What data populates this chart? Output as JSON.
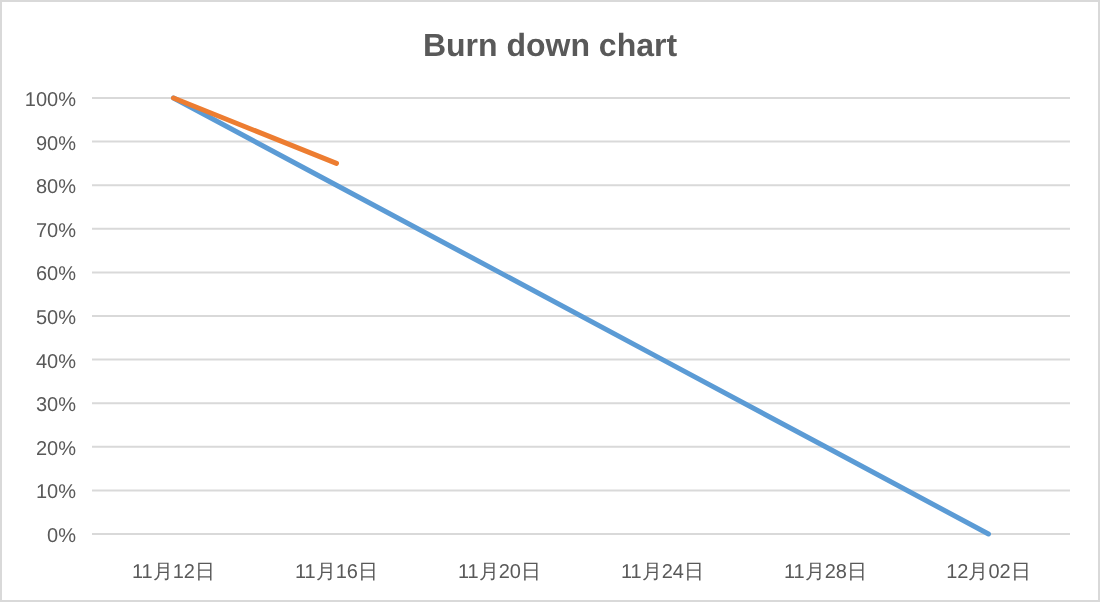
{
  "chart_data": {
    "type": "line",
    "title": "Burn down chart",
    "series": [
      {
        "color": "#5b9bd5",
        "x": [
          "--11-12",
          "--11-16",
          "--11-20",
          "--11-24",
          "--11-28",
          "--12-02"
        ],
        "values": [
          100,
          80,
          60,
          40,
          20,
          0
        ]
      },
      {
        "color": "#ed7d31",
        "x": [
          "--11-12",
          "--11-16"
        ],
        "values": [
          100,
          85
        ]
      }
    ],
    "xlim": [
      "--11-10",
      "--12-04"
    ],
    "xticks": [
      {
        "value": "--11-12",
        "label": "11月12日"
      },
      {
        "value": "--11-16",
        "label": "11月16日"
      },
      {
        "value": "--11-20",
        "label": "11月20日"
      },
      {
        "value": "--11-24",
        "label": "11月24日"
      },
      {
        "value": "--11-28",
        "label": "11月28日"
      },
      {
        "value": "--12-02",
        "label": "12月02日"
      }
    ],
    "ylim": [
      0,
      100
    ],
    "yticks": [
      {
        "value": 0,
        "label": "0%"
      },
      {
        "value": 10,
        "label": "10%"
      },
      {
        "value": 20,
        "label": "20%"
      },
      {
        "value": 30,
        "label": "30%"
      },
      {
        "value": 40,
        "label": "40%"
      },
      {
        "value": 50,
        "label": "50%"
      },
      {
        "value": 60,
        "label": "60%"
      },
      {
        "value": 70,
        "label": "70%"
      },
      {
        "value": 80,
        "label": "80%"
      },
      {
        "value": 90,
        "label": "90%"
      },
      {
        "value": 100,
        "label": "100%"
      }
    ],
    "grid": "y",
    "marker": "none",
    "line_style": "solid"
  }
}
